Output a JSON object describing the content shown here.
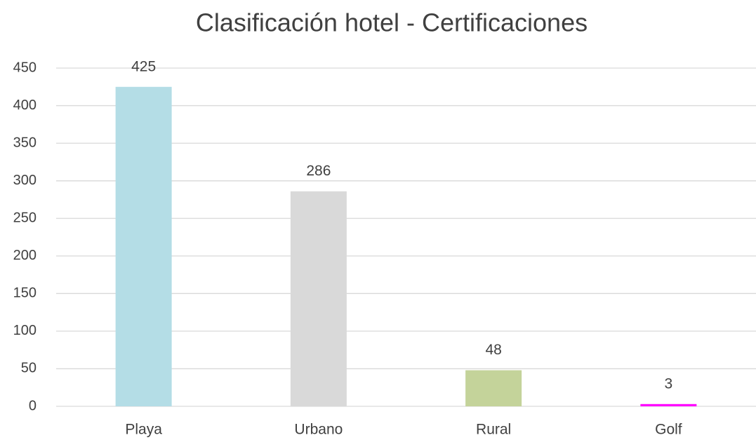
{
  "chart_data": {
    "type": "bar",
    "title": "Clasificación hotel - Certificaciones",
    "categories": [
      "Playa",
      "Urbano",
      "Rural",
      "Golf"
    ],
    "values": [
      425,
      286,
      48,
      3
    ],
    "colors": [
      "#b4dde6",
      "#d9d9d9",
      "#c4d39a",
      "#ff00ff"
    ],
    "ylim": [
      0,
      450
    ],
    "yticks": [
      0,
      50,
      100,
      150,
      200,
      250,
      300,
      350,
      400,
      450
    ],
    "grid": true
  }
}
